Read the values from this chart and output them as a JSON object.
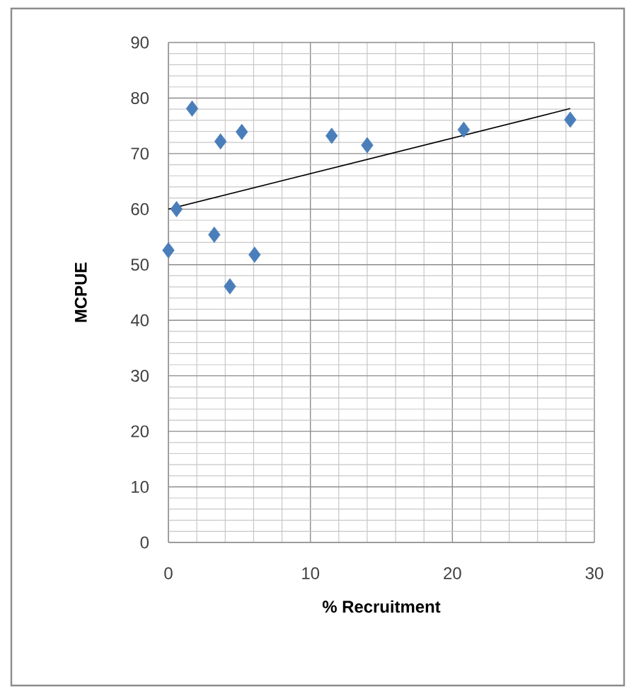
{
  "chart_data": {
    "type": "scatter",
    "xlabel": "% Recruitment",
    "ylabel": "MCPUE",
    "xlim": [
      0,
      30
    ],
    "ylim": [
      0,
      90
    ],
    "xticks": [
      0,
      10,
      20,
      30
    ],
    "yticks": [
      0,
      10,
      20,
      30,
      40,
      50,
      60,
      70,
      80,
      90
    ],
    "grid": true,
    "series": [
      {
        "marker": "diamond",
        "color": "#4a7ebb",
        "x": [
          0,
          0.57,
          1.67,
          3.23,
          3.67,
          5.17,
          4.33,
          6.07,
          11.5,
          14.0,
          20.8,
          28.3
        ],
        "values": [
          52.6,
          60.0,
          78.1,
          55.4,
          72.2,
          73.9,
          46.1,
          51.8,
          73.2,
          71.5,
          74.3,
          76.1
        ]
      },
      {
        "type": "line",
        "marker": "none",
        "color": "#000000",
        "x": [
          0,
          28.3
        ],
        "values": [
          60.0,
          78.1
        ]
      }
    ]
  }
}
